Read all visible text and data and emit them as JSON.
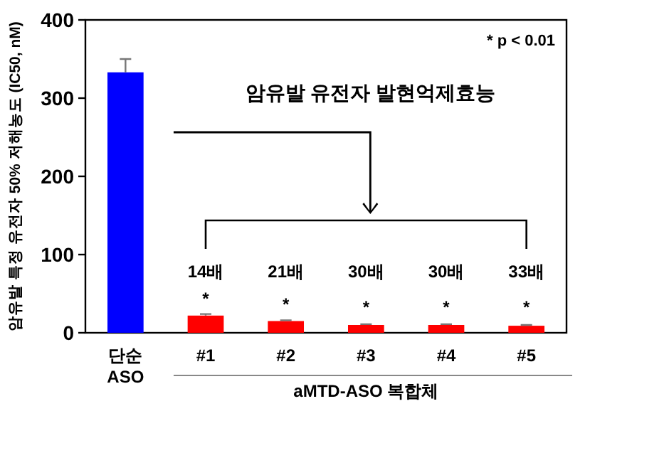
{
  "chart_data": {
    "type": "bar",
    "ylabel": "암유발 특정 유전자 50% 저해농도 (IC50, nM)",
    "xlabel": "aMTD-ASO 복합체",
    "categories": [
      "단순 ASO",
      "#1",
      "#2",
      "#3",
      "#4",
      "#5"
    ],
    "values": [
      333,
      22,
      15,
      10,
      10,
      9
    ],
    "errors": [
      17,
      2,
      1,
      1,
      1,
      1
    ],
    "colors": [
      "#0000ff",
      "#ff0000",
      "#ff0000",
      "#ff0000",
      "#ff0000",
      "#ff0000"
    ],
    "ylim": [
      0,
      400
    ],
    "yticks": [
      0,
      100,
      200,
      300,
      400
    ],
    "annotations": [
      "* p < 0.01",
      "암유발 유전자 발현억제효능",
      "14배",
      "21배",
      "30배",
      "30배",
      "33배",
      "*",
      "*",
      "*",
      "*",
      "*"
    ]
  }
}
